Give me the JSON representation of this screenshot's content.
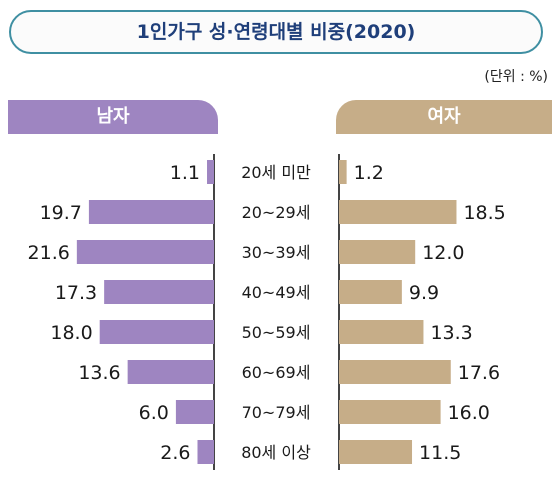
{
  "title": "1인가구 성·연령대별 비중(2020)",
  "unit_label": "(단위 : %)",
  "chart_data": {
    "type": "bar",
    "orientation": "horizontal-butterfly",
    "categories": [
      "20세 미만",
      "20~29세",
      "30~39세",
      "40~49세",
      "50~59세",
      "60~69세",
      "70~79세",
      "80세 이상"
    ],
    "series": [
      {
        "name": "남자",
        "values": [
          1.1,
          19.7,
          21.6,
          17.3,
          18.0,
          13.6,
          6.0,
          2.6
        ],
        "labels": [
          "1.1",
          "19.7",
          "21.6",
          "17.3",
          "18.0",
          "13.6",
          "6.0",
          "2.6"
        ]
      },
      {
        "name": "여자",
        "values": [
          1.2,
          18.5,
          12.0,
          9.9,
          13.3,
          17.6,
          16.0,
          11.5
        ],
        "labels": [
          "1.2",
          "18.5",
          "12.0",
          "9.9",
          "13.3",
          "17.6",
          "16.0",
          "11.5"
        ]
      }
    ],
    "colors": {
      "male": "#9e85c1",
      "female": "#c6ad88",
      "axis": "#444444",
      "title_border": "#3f8fa2",
      "title_text": "#1f3f7a"
    },
    "legend": "headers-above-columns"
  }
}
